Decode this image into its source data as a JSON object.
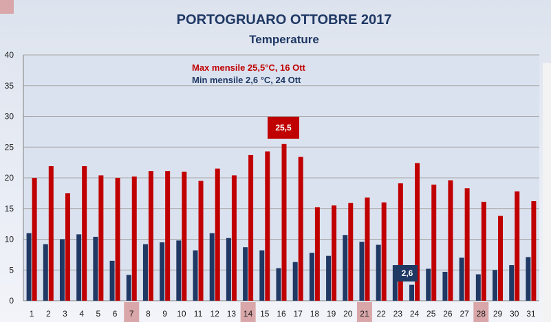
{
  "chart_data": {
    "type": "bar",
    "title": "PORTOGRUARO OTTOBRE 2017",
    "subtitle": "Temperature",
    "ylim": [
      0,
      40
    ],
    "yticks": [
      0,
      5,
      10,
      15,
      20,
      25,
      30,
      35,
      40
    ],
    "grid": true,
    "categories": [
      "1",
      "2",
      "3",
      "4",
      "5",
      "6",
      "7",
      "8",
      "9",
      "10",
      "11",
      "12",
      "13",
      "14",
      "15",
      "16",
      "17",
      "18",
      "19",
      "20",
      "21",
      "22",
      "23",
      "24",
      "25",
      "26",
      "27",
      "28",
      "29",
      "30",
      "31"
    ],
    "highlighted_categories": [
      "7",
      "14",
      "21",
      "28"
    ],
    "series": [
      {
        "key": "min",
        "color": "#1f3864",
        "values": [
          11.0,
          9.2,
          10.0,
          10.8,
          10.4,
          6.5,
          4.2,
          9.2,
          9.5,
          9.8,
          8.2,
          11.0,
          10.2,
          8.7,
          8.2,
          5.3,
          6.3,
          7.8,
          7.3,
          10.7,
          9.6,
          9.1,
          5.8,
          2.6,
          5.2,
          4.7,
          7.0,
          4.3,
          5.0,
          5.8,
          7.1
        ]
      },
      {
        "key": "max",
        "color": "#c00000",
        "values": [
          20.0,
          21.9,
          17.5,
          21.9,
          20.4,
          20.0,
          20.2,
          21.1,
          21.1,
          21.0,
          19.5,
          21.5,
          20.4,
          23.7,
          24.3,
          25.5,
          23.4,
          15.2,
          15.5,
          15.9,
          16.8,
          16.0,
          19.1,
          22.4,
          18.9,
          19.6,
          18.3,
          16.1,
          13.8,
          17.8,
          16.2
        ]
      }
    ],
    "annotations": {
      "max_line": "Max mensile  25,5°C, 16  Ott",
      "min_line": "Min mensile  2,6 °C, 24 Ott",
      "max_label": "25,5",
      "max_label_day": "16",
      "min_label": "2,6",
      "min_label_day": "24"
    }
  }
}
